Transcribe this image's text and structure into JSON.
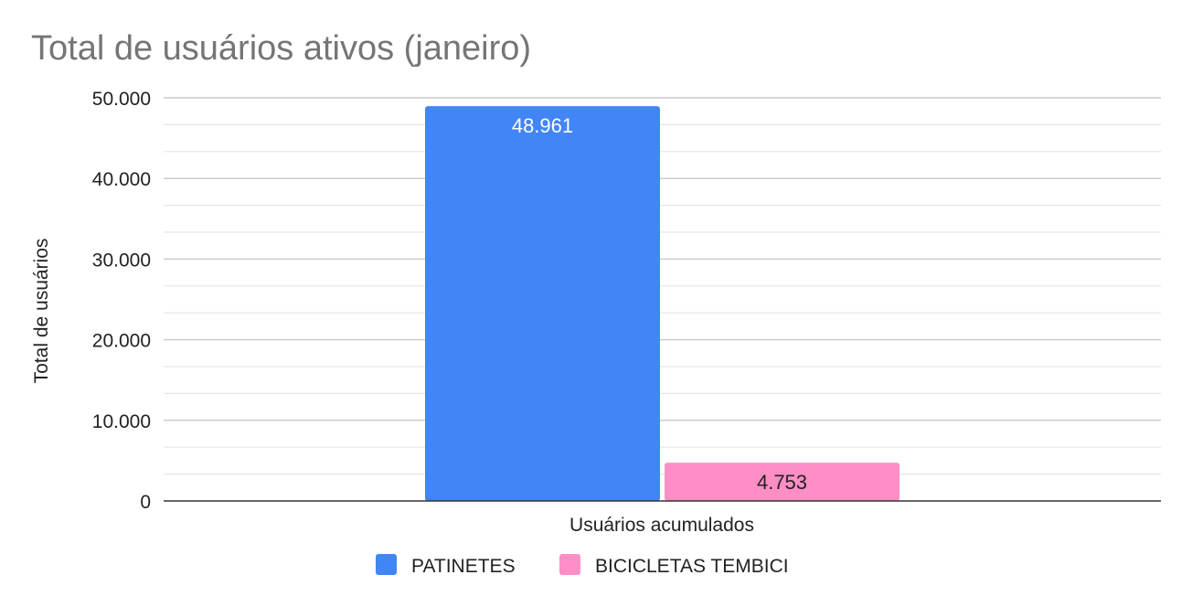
{
  "chart_data": {
    "type": "bar",
    "title": "Total de usuários ativos (janeiro)",
    "xlabel": "Usuários acumulados",
    "ylabel": "Total de usuários",
    "categories": [
      "Usuários acumulados"
    ],
    "ylim": [
      0,
      50000
    ],
    "yticks": [
      0,
      10000,
      20000,
      30000,
      40000,
      50000
    ],
    "ytick_labels": [
      "0",
      "10.000",
      "20.000",
      "30.000",
      "40.000",
      "50.000"
    ],
    "grid": true,
    "legend_position": "bottom",
    "series": [
      {
        "name": "PATINETES",
        "values": [
          48961
        ],
        "label": "48.961",
        "color": "#4285f4",
        "label_color": "#ffffff"
      },
      {
        "name": "BICICLETAS TEMBICI",
        "values": [
          4753
        ],
        "label": "4.753",
        "color": "#ff8ec6",
        "label_color": "#222222"
      }
    ]
  }
}
